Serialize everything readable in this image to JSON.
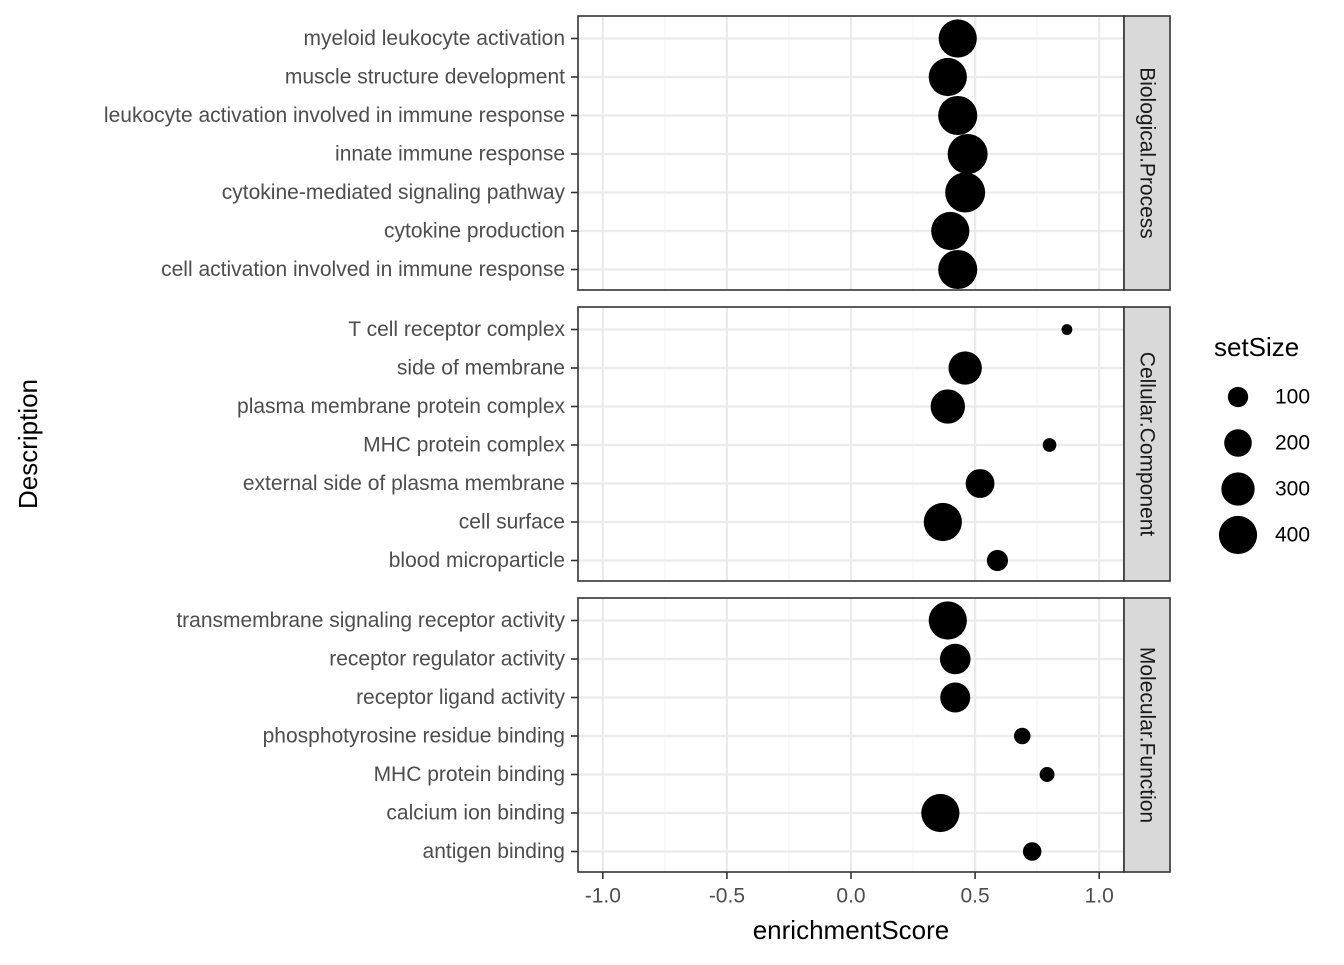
{
  "chart_data": {
    "type": "scatter",
    "xlabel": "enrichmentScore",
    "ylabel": "Description",
    "xlim": [
      -1.1,
      1.1
    ],
    "x_ticks": [
      -1.0,
      -0.5,
      0.0,
      0.5,
      1.0
    ],
    "x_tick_labels": [
      "-1.0",
      "-0.5",
      "0.0",
      "0.5",
      "1.0"
    ],
    "grid": true,
    "facets": [
      {
        "label": "Biological.Process",
        "points": [
          {
            "description": "myeloid leukocyte activation",
            "enrichmentScore": 0.43,
            "setSize": 400
          },
          {
            "description": "muscle structure development",
            "enrichmentScore": 0.39,
            "setSize": 400
          },
          {
            "description": "leukocyte activation involved in immune response",
            "enrichmentScore": 0.43,
            "setSize": 420
          },
          {
            "description": "innate immune response",
            "enrichmentScore": 0.47,
            "setSize": 440
          },
          {
            "description": "cytokine-mediated signaling pathway",
            "enrichmentScore": 0.46,
            "setSize": 440
          },
          {
            "description": "cytokine production",
            "enrichmentScore": 0.4,
            "setSize": 400
          },
          {
            "description": "cell activation involved in immune response",
            "enrichmentScore": 0.43,
            "setSize": 420
          }
        ]
      },
      {
        "label": "Cellular.Component",
        "points": [
          {
            "description": "T cell receptor complex",
            "enrichmentScore": 0.87,
            "setSize": 15
          },
          {
            "description": "side of membrane",
            "enrichmentScore": 0.46,
            "setSize": 300
          },
          {
            "description": "plasma membrane protein complex",
            "enrichmentScore": 0.39,
            "setSize": 320
          },
          {
            "description": "MHC protein complex",
            "enrichmentScore": 0.8,
            "setSize": 35
          },
          {
            "description": "external side of plasma membrane",
            "enrichmentScore": 0.52,
            "setSize": 220
          },
          {
            "description": "cell surface",
            "enrichmentScore": 0.37,
            "setSize": 400
          },
          {
            "description": "blood microparticle",
            "enrichmentScore": 0.59,
            "setSize": 110
          }
        ]
      },
      {
        "label": "Molecular.Function",
        "points": [
          {
            "description": "transmembrane signaling receptor activity",
            "enrichmentScore": 0.39,
            "setSize": 400
          },
          {
            "description": "receptor regulator activity",
            "enrichmentScore": 0.42,
            "setSize": 250
          },
          {
            "description": "receptor ligand activity",
            "enrichmentScore": 0.42,
            "setSize": 240
          },
          {
            "description": "phosphotyrosine residue binding",
            "enrichmentScore": 0.69,
            "setSize": 60
          },
          {
            "description": "MHC protein binding",
            "enrichmentScore": 0.79,
            "setSize": 45
          },
          {
            "description": "calcium ion binding",
            "enrichmentScore": 0.36,
            "setSize": 400
          },
          {
            "description": "antigen binding",
            "enrichmentScore": 0.73,
            "setSize": 80
          }
        ]
      }
    ],
    "legend": {
      "title": "setSize",
      "placement": "right",
      "entries": [
        {
          "label": "100",
          "value": 100
        },
        {
          "label": "200",
          "value": 200
        },
        {
          "label": "300",
          "value": 300
        },
        {
          "label": "400",
          "value": 400
        }
      ]
    },
    "colors": {
      "point": "#000000",
      "strip_fill": "#d9d9d9",
      "panel_border": "#333333",
      "grid_major": "#ebebeb",
      "grid_minor": "#f5f5f5",
      "tick_text": "#4d4d4d"
    }
  }
}
